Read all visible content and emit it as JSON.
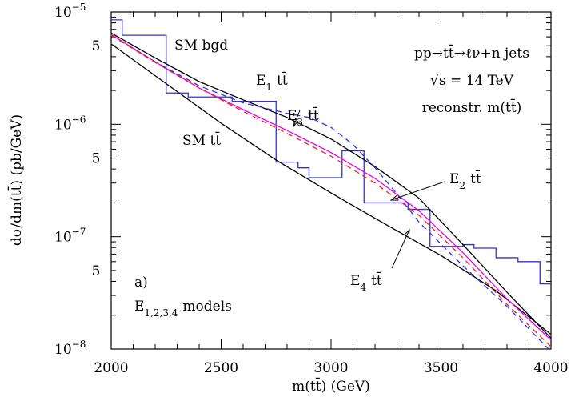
{
  "chart_data": {
    "type": "line",
    "title": "",
    "xlabel": "m(tt̄)  (GeV)",
    "ylabel": "dσ/dm(tt̄)  (pb/GeV)",
    "xlim": [
      2000,
      4000
    ],
    "ylim": [
      1e-08,
      1e-05
    ],
    "yscale": "log",
    "x_ticks": [
      2000,
      2500,
      3000,
      3500,
      4000
    ],
    "y_decade_ticks": [
      {
        "value": 1e-05,
        "base": "10",
        "exp": "−5"
      },
      {
        "value": 1e-06,
        "base": "10",
        "exp": "−6"
      },
      {
        "value": 1e-07,
        "base": "10",
        "exp": "−7"
      },
      {
        "value": 1e-08,
        "base": "10",
        "exp": "−8"
      }
    ],
    "y_minor_labels": [
      {
        "value": 5e-06,
        "label": "5"
      },
      {
        "value": 5e-07,
        "label": "5"
      },
      {
        "value": 5e-08,
        "label": "5"
      }
    ],
    "info_text": [
      "pp→tt̄→ℓν+n jets",
      "√s = 14 TeV",
      "reconstr. m(tt̄)"
    ],
    "panel_label": "a)",
    "models_label": "E1,2,3,4 models",
    "series": [
      {
        "label": "SM bgd",
        "style": "histogram",
        "color": "#3333cc",
        "bin_edges": [
          2000,
          2050,
          2250,
          2350,
          2550,
          2750,
          2850,
          2900,
          3050,
          3150,
          3350,
          3450,
          3600,
          3650,
          3750,
          3850,
          3950,
          4000
        ],
        "values": [
          8.5e-06,
          6.2e-06,
          1.9e-06,
          1.75e-06,
          1.6e-06,
          4.6e-07,
          4.1e-07,
          3.35e-07,
          5.8e-07,
          2e-07,
          1.75e-07,
          8.2e-08,
          8.5e-08,
          7.9e-08,
          6.5e-08,
          6e-08,
          3.8e-08
        ]
      },
      {
        "label": "SM tt̄",
        "style": "solid",
        "color": "#000000",
        "points": [
          [
            2000,
            5.2e-06
          ],
          [
            2250,
            2.3e-06
          ],
          [
            2500,
            1.02e-06
          ],
          [
            2750,
            4.8e-07
          ],
          [
            3000,
            2.45e-07
          ],
          [
            3250,
            1.28e-07
          ],
          [
            3500,
            6.8e-08
          ],
          [
            3750,
            3.3e-08
          ],
          [
            4000,
            1.35e-08
          ]
        ]
      },
      {
        "label": "E1 tt̄",
        "style": "solid",
        "color": "#000000",
        "points": [
          [
            2000,
            6.5e-06
          ],
          [
            2200,
            3.9e-06
          ],
          [
            2400,
            2.4e-06
          ],
          [
            2600,
            1.65e-06
          ],
          [
            2800,
            1.15e-06
          ],
          [
            3000,
            7.4e-07
          ],
          [
            3200,
            4.2e-07
          ],
          [
            3400,
            2.2e-07
          ],
          [
            3600,
            8.5e-08
          ],
          [
            3800,
            3.2e-08
          ],
          [
            4000,
            1.25e-08
          ]
        ]
      },
      {
        "label": "E2 tt̄",
        "style": "solid",
        "color": "#ee00ee",
        "points": [
          [
            2000,
            6.3e-06
          ],
          [
            2200,
            3.6e-06
          ],
          [
            2400,
            2.1e-06
          ],
          [
            2600,
            1.35e-06
          ],
          [
            2800,
            8.8e-07
          ],
          [
            3000,
            5.6e-07
          ],
          [
            3200,
            3.3e-07
          ],
          [
            3400,
            1.7e-07
          ],
          [
            3600,
            7.2e-08
          ],
          [
            3800,
            2.8e-08
          ],
          [
            4000,
            1.2e-08
          ]
        ]
      },
      {
        "label": "E3 tt̄",
        "style": "dashed",
        "color": "#3333ee",
        "points": [
          [
            2000,
            6.2e-06
          ],
          [
            2200,
            3.6e-06
          ],
          [
            2400,
            2.2e-06
          ],
          [
            2600,
            1.55e-06
          ],
          [
            2800,
            1.25e-06
          ],
          [
            2900,
            1.15e-06
          ],
          [
            3000,
            9.4e-07
          ],
          [
            3100,
            6.6e-07
          ],
          [
            3200,
            4.1e-07
          ],
          [
            3300,
            2.4e-07
          ],
          [
            3400,
            1.35e-07
          ],
          [
            3600,
            5.5e-08
          ],
          [
            3800,
            2.4e-08
          ],
          [
            4000,
            9.5e-09
          ]
        ]
      },
      {
        "label": "E4 tt̄",
        "style": "dashed",
        "color": "#ee2222",
        "points": [
          [
            2000,
            6.2e-06
          ],
          [
            2200,
            3.55e-06
          ],
          [
            2400,
            2.1e-06
          ],
          [
            2600,
            1.3e-06
          ],
          [
            2800,
            8.3e-07
          ],
          [
            3000,
            5.2e-07
          ],
          [
            3200,
            3e-07
          ],
          [
            3400,
            1.55e-07
          ],
          [
            3600,
            6.5e-08
          ],
          [
            3800,
            2.5e-08
          ],
          [
            4000,
            1.05e-08
          ]
        ]
      }
    ],
    "annotations": [
      {
        "text": "SM bgd",
        "sub": "",
        "arrow": false
      },
      {
        "text": "SM tt̄",
        "sub": "",
        "arrow": false
      },
      {
        "text": "E tt̄",
        "sub": "1",
        "arrow": false
      },
      {
        "text": "E tt̄",
        "sub": "3",
        "arrow": true
      },
      {
        "text": "E tt̄",
        "sub": "2",
        "arrow": true
      },
      {
        "text": "E tt̄",
        "sub": "4",
        "arrow": true
      }
    ]
  }
}
